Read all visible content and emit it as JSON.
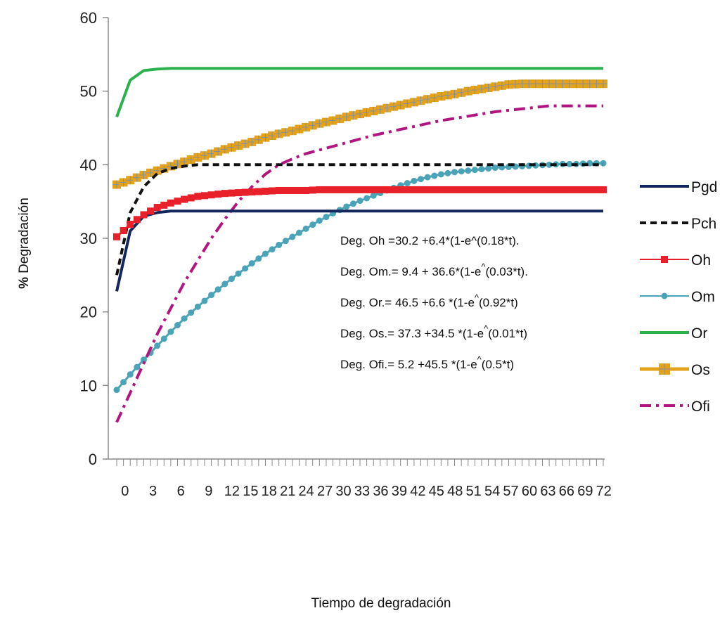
{
  "chart_data": {
    "type": "line",
    "title": "",
    "xlabel": "Tiempo de degradación",
    "ylabel_prefix": "%",
    "ylabel": "Degradación",
    "ylim": [
      0,
      60
    ],
    "yticks": [
      0,
      10,
      20,
      30,
      40,
      50,
      60
    ],
    "xlim": [
      0,
      72
    ],
    "xtick_labels": [
      "0",
      "3",
      "6",
      "9",
      "12",
      "15",
      "18",
      "21",
      "24",
      "27",
      "30",
      "33",
      "36",
      "39",
      "42",
      "45",
      "48",
      "51",
      "54",
      "57",
      "60",
      "63",
      "66",
      "69",
      "72"
    ],
    "grid": false,
    "legend_position": "right",
    "x": [
      0,
      2,
      4,
      6,
      8,
      10,
      12,
      14,
      16,
      18,
      20,
      22,
      24,
      26,
      28,
      30,
      32,
      34,
      36,
      38,
      40,
      42,
      44,
      46,
      48,
      50,
      52,
      54,
      56,
      58,
      60,
      62,
      64,
      66,
      68,
      70,
      72
    ],
    "series": [
      {
        "name": "Pgd",
        "color": "#13275f",
        "style": "solid",
        "marker": "none",
        "values": [
          22.8,
          31.0,
          33.0,
          33.5,
          33.7,
          33.7,
          33.7,
          33.7,
          33.7,
          33.7,
          33.7,
          33.7,
          33.7,
          33.7,
          33.7,
          33.7,
          33.7,
          33.7,
          33.7,
          33.7,
          33.7,
          33.7,
          33.7,
          33.7,
          33.7,
          33.7,
          33.7,
          33.7,
          33.7,
          33.7,
          33.7,
          33.7,
          33.7,
          33.7,
          33.7,
          33.7,
          33.7
        ]
      },
      {
        "name": "Pch",
        "color": "#111111",
        "style": "dashed",
        "marker": "none",
        "values": [
          25.0,
          33.5,
          37.0,
          38.8,
          39.5,
          39.8,
          40.0,
          40.0,
          40.0,
          40.0,
          40.0,
          40.0,
          40.0,
          40.0,
          40.0,
          40.0,
          40.0,
          40.0,
          40.0,
          40.0,
          40.0,
          40.0,
          40.0,
          40.0,
          40.0,
          40.0,
          40.0,
          40.0,
          40.0,
          40.0,
          40.0,
          40.0,
          40.0,
          40.0,
          40.0,
          40.0,
          40.0
        ]
      },
      {
        "name": "Oh",
        "color": "#e8202a",
        "style": "solid",
        "marker": "square",
        "values": [
          30.2,
          31.9,
          33.2,
          34.2,
          34.8,
          35.3,
          35.7,
          35.9,
          36.1,
          36.2,
          36.3,
          36.4,
          36.5,
          36.5,
          36.5,
          36.6,
          36.6,
          36.6,
          36.6,
          36.6,
          36.6,
          36.6,
          36.6,
          36.6,
          36.6,
          36.6,
          36.6,
          36.6,
          36.6,
          36.6,
          36.6,
          36.6,
          36.6,
          36.6,
          36.6,
          36.6,
          36.6
        ]
      },
      {
        "name": "Om",
        "color": "#4ba3b7",
        "style": "solid",
        "marker": "diamond",
        "values": [
          9.4,
          11.5,
          13.5,
          15.4,
          17.3,
          19.1,
          20.7,
          22.3,
          23.8,
          25.2,
          26.6,
          27.9,
          29.1,
          30.2,
          31.3,
          32.4,
          33.4,
          34.3,
          35.1,
          35.8,
          36.5,
          37.2,
          37.8,
          38.3,
          38.7,
          39.0,
          39.2,
          39.4,
          39.6,
          39.7,
          39.8,
          39.9,
          40.0,
          40.1,
          40.1,
          40.2,
          40.2
        ]
      },
      {
        "name": "Or",
        "color": "#2bb24c",
        "style": "solid",
        "marker": "none",
        "values": [
          46.5,
          51.5,
          52.8,
          53.0,
          53.1,
          53.1,
          53.1,
          53.1,
          53.1,
          53.1,
          53.1,
          53.1,
          53.1,
          53.1,
          53.1,
          53.1,
          53.1,
          53.1,
          53.1,
          53.1,
          53.1,
          53.1,
          53.1,
          53.1,
          53.1,
          53.1,
          53.1,
          53.1,
          53.1,
          53.1,
          53.1,
          53.1,
          53.1,
          53.1,
          53.1,
          53.1,
          53.1
        ]
      },
      {
        "name": "Os",
        "color": "#e3a21a",
        "style": "solid",
        "marker": "plus",
        "values": [
          37.3,
          37.9,
          38.6,
          39.2,
          39.8,
          40.4,
          41.0,
          41.5,
          42.1,
          42.6,
          43.1,
          43.7,
          44.2,
          44.6,
          45.1,
          45.6,
          46.0,
          46.5,
          46.9,
          47.3,
          47.7,
          48.1,
          48.5,
          48.9,
          49.3,
          49.6,
          50.0,
          50.3,
          50.6,
          50.9,
          51.0,
          51.0,
          51.0,
          51.0,
          51.0,
          51.0,
          51.0
        ]
      },
      {
        "name": "Ofi",
        "color": "#b2157f",
        "style": "dashdot",
        "marker": "none",
        "values": [
          5.0,
          9.0,
          13.0,
          17.0,
          20.5,
          24.0,
          27.0,
          30.0,
          32.6,
          35.0,
          37.0,
          38.7,
          40.0,
          40.8,
          41.5,
          42.0,
          42.5,
          43.0,
          43.5,
          44.0,
          44.4,
          44.8,
          45.2,
          45.6,
          46.0,
          46.3,
          46.6,
          46.9,
          47.2,
          47.4,
          47.6,
          47.8,
          48.0,
          48.0,
          48.0,
          48.0,
          48.0
        ]
      }
    ],
    "annotations": [
      {
        "prefix": "Deg. Oh =30.2 +6.4*(1-e^(0.18*t).",
        "sup": "",
        "suffix": ""
      },
      {
        "prefix": "Deg. Om.= 9.4 + 36.6*(1-e",
        "sup": "^",
        "suffix": "(0.03*t)."
      },
      {
        "prefix": "Deg. Or.= 46.5 +6.6 *(1-e",
        "sup": "^",
        "suffix": "(0.92*t)"
      },
      {
        "prefix": "Deg. Os.= 37.3 +34.5 *(1-e",
        "sup": "^",
        "suffix": "(0.01*t)"
      },
      {
        "prefix": "Deg. Ofi.= 5.2 +45.5 *(1-e",
        "sup": "^",
        "suffix": "(0.5*t)"
      }
    ]
  }
}
